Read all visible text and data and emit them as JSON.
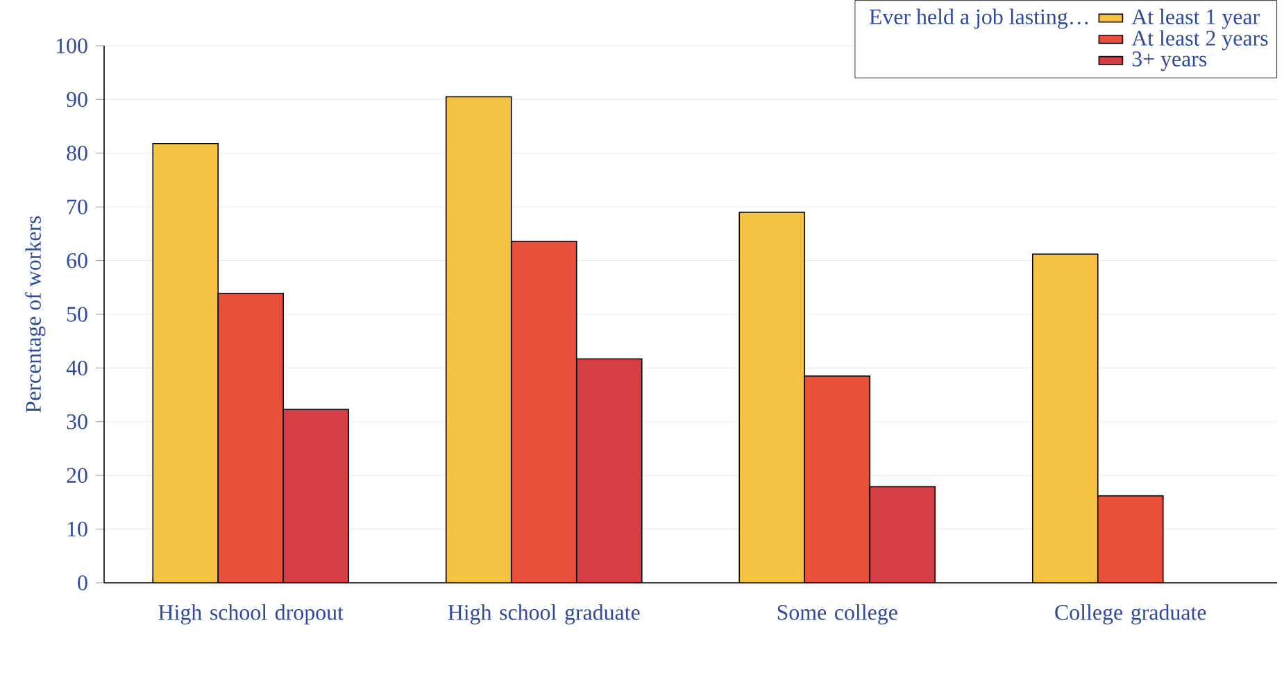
{
  "chart_data": {
    "type": "bar",
    "ylabel": "Percentage of workers",
    "legend_title": "Ever held a job lasting…",
    "categories": [
      "High school dropout",
      "High school graduate",
      "Some college",
      "College graduate"
    ],
    "series": [
      {
        "name": "At least 1 year",
        "color": "#f5c242",
        "values": [
          81.8,
          90.5,
          69.0,
          61.2
        ]
      },
      {
        "name": "At least 2 years",
        "color": "#e8503a",
        "values": [
          53.9,
          63.6,
          38.5,
          16.2
        ]
      },
      {
        "name": "3+ years",
        "color": "#d63d45",
        "values": [
          32.3,
          41.7,
          17.9,
          null
        ]
      }
    ],
    "ylim": [
      0,
      100
    ],
    "yticks": [
      0,
      10,
      20,
      30,
      40,
      50,
      60,
      70,
      80,
      90,
      100
    ],
    "grid": "y",
    "legend": "top right"
  }
}
